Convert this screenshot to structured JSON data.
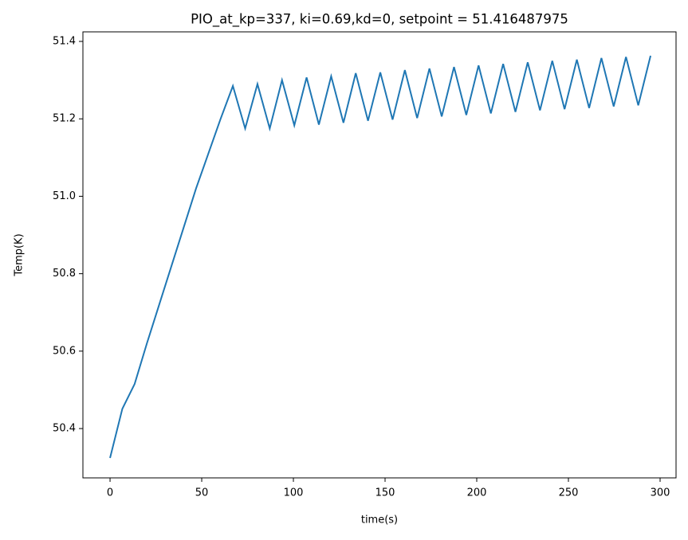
{
  "chart_data": {
    "type": "line",
    "title": "PIO_at_kp=337, ki=0.69,kd=0, setpoint = 51.416487975",
    "xlabel": "time(s)",
    "ylabel": "Temp(K)",
    "color": "#1f77b4",
    "x": [
      0,
      6.7,
      13.4,
      20.1,
      26.8,
      33.5,
      40.2,
      46.9,
      53.6,
      60.3,
      67,
      73.7,
      80.4,
      87.1,
      93.8,
      100.5,
      107.2,
      113.9,
      120.6,
      127.3,
      134,
      140.7,
      147.4,
      154.1,
      160.8,
      167.5,
      174.2,
      180.9,
      187.6,
      194.3,
      201,
      207.7,
      214.4,
      221.1,
      227.8,
      234.5,
      241.2,
      247.9,
      254.6,
      261.3,
      268,
      274.7,
      281.4,
      288.1,
      294.8
    ],
    "values": [
      50.324,
      50.451,
      50.515,
      50.62,
      50.72,
      50.82,
      50.92,
      51.02,
      51.11,
      51.2,
      51.285,
      51.175,
      51.29,
      51.175,
      51.3,
      51.183,
      51.307,
      51.185,
      51.31,
      51.19,
      51.318,
      51.195,
      51.32,
      51.198,
      51.326,
      51.202,
      51.33,
      51.206,
      51.334,
      51.21,
      51.338,
      51.214,
      51.342,
      51.218,
      51.346,
      51.222,
      51.35,
      51.225,
      51.353,
      51.228,
      51.357,
      51.232,
      51.36,
      51.235,
      51.363
    ],
    "xlim": [
      -14.8,
      308.7
    ],
    "ylim": [
      50.2726,
      51.4247
    ],
    "xticks": [
      0,
      50,
      100,
      150,
      200,
      250,
      300
    ],
    "yticks": [
      50.4,
      50.6,
      50.8,
      {
        "value": 51,
        "label": "51.0"
      },
      51.2,
      51.4
    ]
  }
}
